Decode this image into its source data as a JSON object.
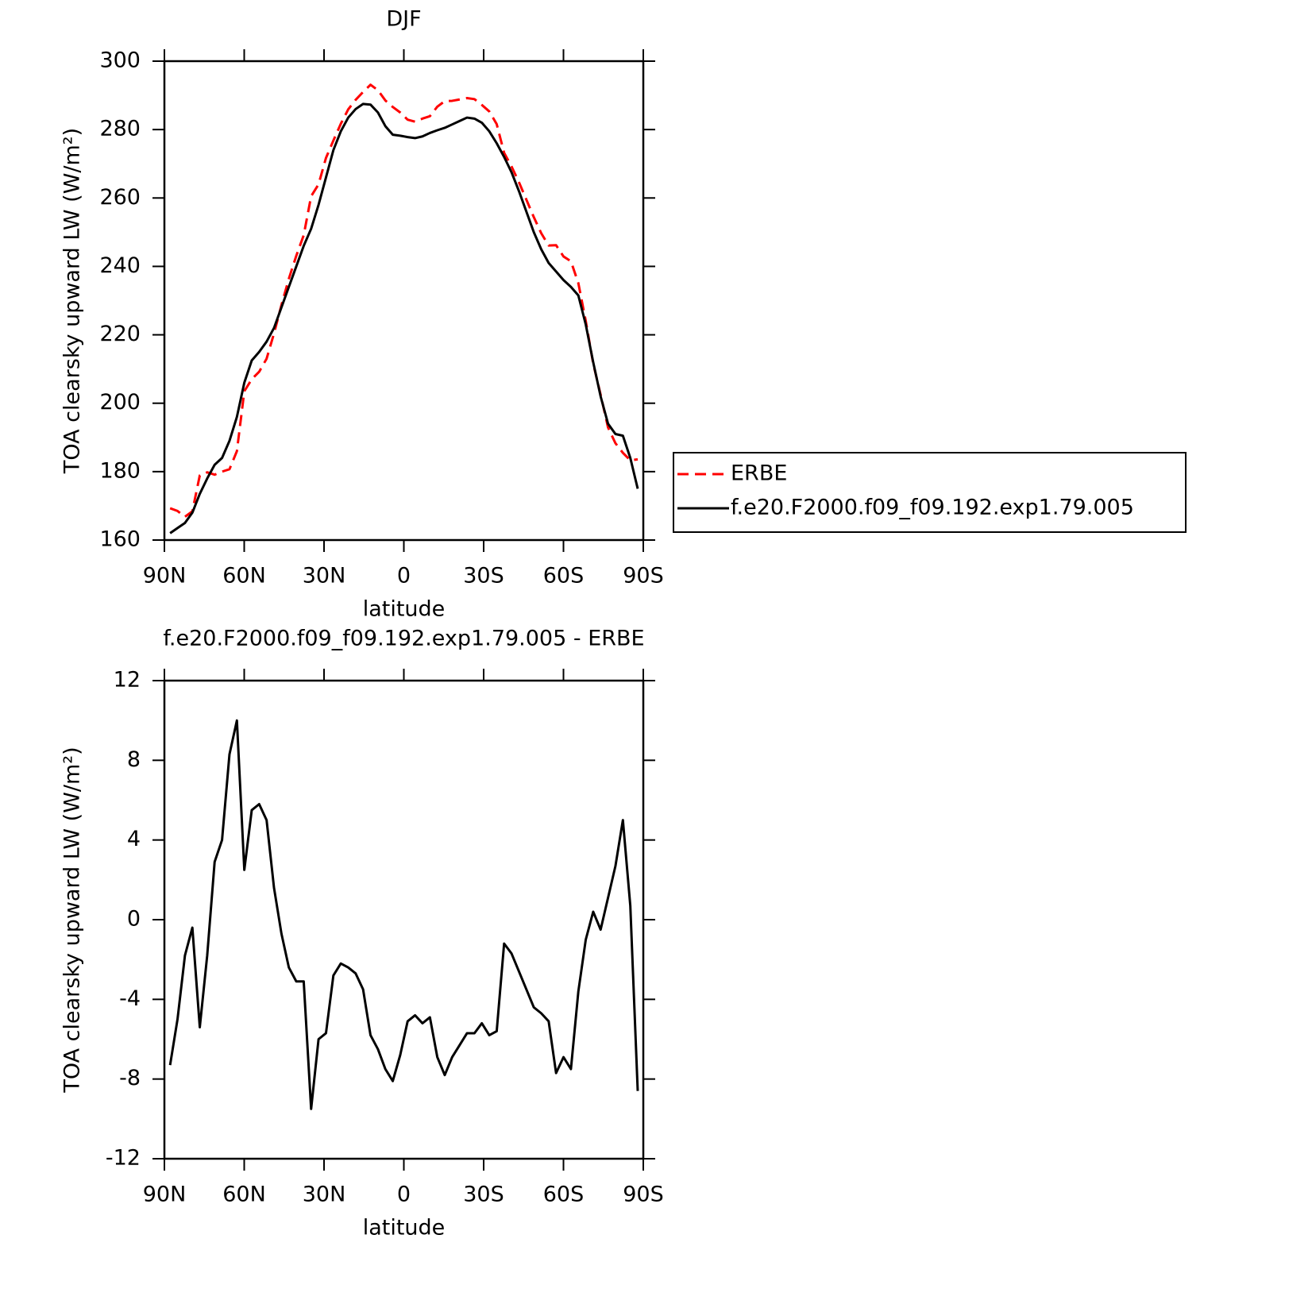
{
  "chart_data": [
    {
      "type": "line",
      "title": "DJF",
      "xlabel": "latitude",
      "ylabel": "TOA clearsky upward LW (W/m²)",
      "x": [
        87.86,
        85.07,
        82.28,
        79.49,
        76.7,
        73.91,
        71.12,
        68.33,
        65.54,
        62.75,
        59.96,
        57.17,
        54.38,
        51.59,
        48.8,
        46.01,
        43.22,
        40.43,
        37.64,
        34.85,
        32.06,
        29.27,
        26.48,
        23.69,
        20.9,
        18.11,
        15.32,
        12.53,
        9.74,
        6.95,
        4.16,
        1.37,
        -1.42,
        -4.21,
        -7.0,
        -9.79,
        -12.58,
        -15.37,
        -18.16,
        -20.95,
        -23.74,
        -26.53,
        -29.32,
        -32.11,
        -34.9,
        -37.69,
        -40.48,
        -43.27,
        -46.06,
        -48.85,
        -51.64,
        -54.43,
        -57.22,
        -60.01,
        -62.8,
        -65.59,
        -68.38,
        -71.17,
        -73.96,
        -76.75,
        -79.54,
        -82.33,
        -85.12,
        -87.91
      ],
      "series": [
        {
          "name": "ERBE",
          "color": "#ff0000",
          "line_style": "dashed",
          "values": [
            169.3,
            168.5,
            166.8,
            168.4,
            178.9,
            179.8,
            179.1,
            180,
            180.7,
            186,
            203.5,
            207,
            209.2,
            213,
            220.4,
            228.7,
            236.4,
            243.1,
            249.1,
            260.5,
            264,
            271.7,
            276.8,
            281.7,
            285.9,
            288.7,
            291,
            293.1,
            291.5,
            288.5,
            286.6,
            285,
            282.9,
            282.3,
            283.2,
            283.9,
            286.7,
            288.3,
            288.4,
            288.8,
            289.2,
            288.9,
            287.2,
            285.3,
            281.6,
            273.2,
            269.2,
            264.6,
            259.5,
            254.4,
            249.7,
            246.1,
            246.2,
            242.9,
            241.5,
            235.1,
            224,
            211.6,
            202.5,
            192.9,
            188.3,
            185.5,
            183.3,
            183.6
          ]
        },
        {
          "name": "f.e20.F2000.f09_f09.192.exp1.79.005",
          "color": "#000000",
          "line_style": "solid",
          "values": [
            162,
            163.5,
            165,
            168,
            173.5,
            178,
            182,
            184,
            189,
            196,
            206,
            212.5,
            215,
            218,
            222,
            228,
            234,
            240,
            246,
            251,
            258,
            266,
            274,
            279.5,
            283.5,
            286,
            287.5,
            287.3,
            285,
            281,
            278.5,
            278.2,
            277.8,
            277.5,
            278,
            279,
            279.8,
            280.5,
            281.5,
            282.5,
            283.5,
            283.2,
            282,
            279.5,
            276,
            272,
            267.5,
            262,
            256,
            250,
            245,
            241,
            238.5,
            236,
            234,
            231.5,
            223,
            212,
            202,
            194,
            191,
            190.5,
            184,
            175
          ]
        }
      ],
      "xlim": [
        90,
        -90
      ],
      "xticks": [
        {
          "value": 90,
          "label": "90N"
        },
        {
          "value": 60,
          "label": "60N"
        },
        {
          "value": 30,
          "label": "30N"
        },
        0,
        {
          "value": -30,
          "label": "30S"
        },
        {
          "value": -60,
          "label": "60S"
        },
        {
          "value": -90,
          "label": "90S"
        }
      ],
      "ylim": [
        160,
        300
      ],
      "yticks": [
        160,
        180,
        200,
        220,
        240,
        260,
        280,
        300
      ],
      "legend": "outside-right"
    },
    {
      "type": "line",
      "title": "f.e20.F2000.f09_f09.192.exp1.79.005 - ERBE",
      "xlabel": "latitude",
      "ylabel": "TOA clearsky upward LW (W/m²)",
      "x": [
        87.86,
        85.07,
        82.28,
        79.49,
        76.7,
        73.91,
        71.12,
        68.33,
        65.54,
        62.75,
        59.96,
        57.17,
        54.38,
        51.59,
        48.8,
        46.01,
        43.22,
        40.43,
        37.64,
        34.85,
        32.06,
        29.27,
        26.48,
        23.69,
        20.9,
        18.11,
        15.32,
        12.53,
        9.74,
        6.95,
        4.16,
        1.37,
        -1.42,
        -4.21,
        -7.0,
        -9.79,
        -12.58,
        -15.37,
        -18.16,
        -20.95,
        -23.74,
        -26.53,
        -29.32,
        -32.11,
        -34.9,
        -37.69,
        -40.48,
        -43.27,
        -46.06,
        -48.85,
        -51.64,
        -54.43,
        -57.22,
        -60.01,
        -62.8,
        -65.59,
        -68.38,
        -71.17,
        -73.96,
        -76.75,
        -79.54,
        -82.33,
        -85.12,
        -87.91
      ],
      "values": [
        -7.3,
        -5,
        -1.8,
        -0.4,
        -5.4,
        -1.8,
        2.9,
        4,
        8.3,
        10,
        2.5,
        5.5,
        5.8,
        5,
        1.6,
        -0.7,
        -2.4,
        -3.1,
        -3.1,
        -9.5,
        -6,
        -5.7,
        -2.8,
        -2.2,
        -2.4,
        -2.7,
        -3.5,
        -5.8,
        -6.5,
        -7.5,
        -8.1,
        -6.8,
        -5.1,
        -4.8,
        -5.2,
        -4.9,
        -6.9,
        -7.8,
        -6.9,
        -6.3,
        -5.7,
        -5.7,
        -5.2,
        -5.8,
        -5.6,
        -1.2,
        -1.7,
        -2.6,
        -3.5,
        -4.4,
        -4.7,
        -5.1,
        -7.7,
        -6.9,
        -7.5,
        -3.6,
        -1,
        0.4,
        -0.5,
        1.1,
        2.7,
        5,
        0.7,
        -8.6
      ],
      "color": "#000000",
      "xlim": [
        90,
        -90
      ],
      "xticks": [
        {
          "value": 90,
          "label": "90N"
        },
        {
          "value": 60,
          "label": "60N"
        },
        {
          "value": 30,
          "label": "30N"
        },
        0,
        {
          "value": -30,
          "label": "30S"
        },
        {
          "value": -60,
          "label": "60S"
        },
        {
          "value": -90,
          "label": "90S"
        }
      ],
      "ylim": [
        -12,
        12
      ],
      "yticks": [
        -12,
        -8,
        -4,
        0,
        4,
        8,
        12
      ]
    }
  ]
}
